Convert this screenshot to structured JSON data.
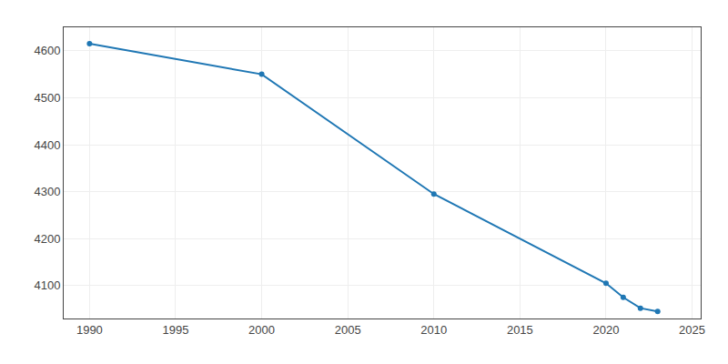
{
  "chart_data": {
    "type": "line",
    "x": [
      1990,
      2000,
      2010,
      2020,
      2021,
      2022,
      2023
    ],
    "values": [
      4615,
      4550,
      4295,
      4105,
      4075,
      4052,
      4045
    ],
    "xlim": [
      1988.5,
      2025.5
    ],
    "ylim": [
      4030,
      4650
    ],
    "xticks": [
      1990,
      1995,
      2000,
      2005,
      2010,
      2015,
      2020,
      2025
    ],
    "yticks": [
      4100,
      4200,
      4300,
      4400,
      4500,
      4600
    ],
    "grid": true,
    "marker": "circle"
  }
}
